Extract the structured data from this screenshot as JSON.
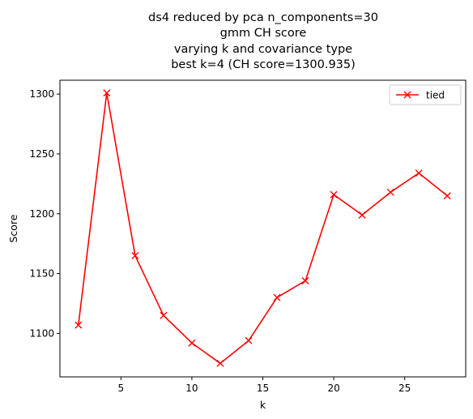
{
  "chart_data": {
    "type": "line",
    "title_lines": [
      "ds4 reduced by pca n_components=30",
      "gmm CH score",
      "varying k and covariance type",
      "best k=4 (CH score=1300.935)"
    ],
    "xlabel": "k",
    "ylabel": "Score",
    "xlim": [
      0.7,
      29.3
    ],
    "ylim": [
      1063.7,
      1311.6
    ],
    "xticks": [
      5,
      10,
      15,
      20,
      25
    ],
    "yticks": [
      1100,
      1150,
      1200,
      1250,
      1300
    ],
    "legend": {
      "location": "top-right"
    },
    "series": [
      {
        "name": "tied",
        "color": "#ff0000",
        "marker": "x",
        "x": [
          2,
          4,
          6,
          8,
          10,
          12,
          14,
          16,
          18,
          20,
          22,
          24,
          26,
          28
        ],
        "y": [
          1107,
          1301,
          1165,
          1115,
          1092,
          1075,
          1094,
          1130,
          1144,
          1216,
          1199,
          1218,
          1234,
          1215
        ]
      }
    ]
  }
}
